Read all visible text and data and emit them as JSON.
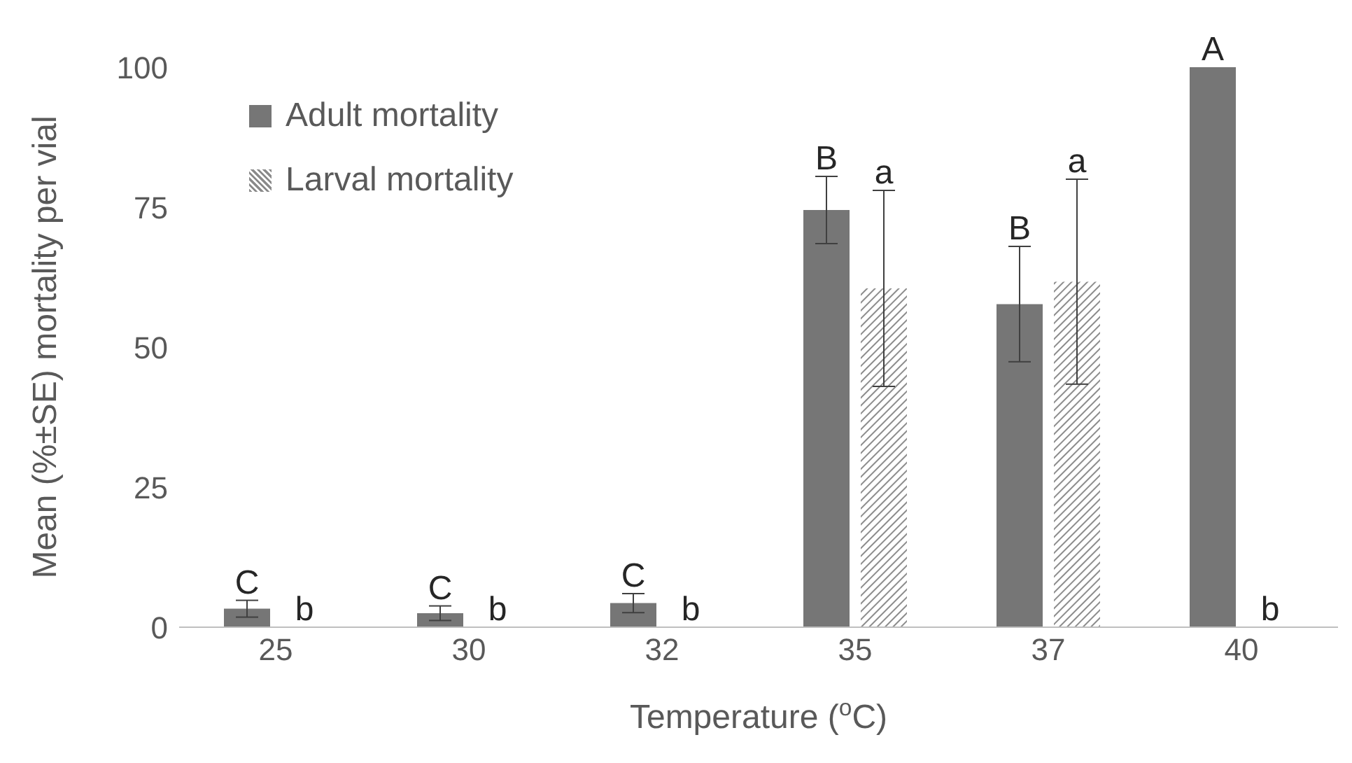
{
  "chart_data": {
    "type": "bar",
    "categories": [
      "25",
      "30",
      "32",
      "35",
      "37",
      "40"
    ],
    "series": [
      {
        "name": "Adult mortality",
        "color": "#767676",
        "values": [
          3.3,
          2.5,
          4.3,
          74.5,
          57.7,
          100
        ],
        "errors": [
          1.5,
          1.3,
          1.7,
          6,
          10.3,
          0
        ],
        "value_labels": [
          "C",
          "C",
          "C",
          "B",
          "B",
          "A"
        ]
      },
      {
        "name": "Larval mortality",
        "color": "#8c8c8c",
        "values": [
          0,
          0,
          0,
          60.5,
          61.7,
          0
        ],
        "errors": [
          null,
          null,
          null,
          17.5,
          18.3,
          null
        ],
        "value_labels": [
          "b",
          "b",
          "b",
          "a",
          "a",
          "b"
        ]
      }
    ],
    "xlabel": "Temperature ($^{o}$C)",
    "ylabel": "Mean (%±SE) mortality per vial",
    "ylim": [
      0,
      100
    ],
    "yticks": [
      0,
      25,
      50,
      75,
      100
    ],
    "grid": false,
    "legend": "top left"
  }
}
